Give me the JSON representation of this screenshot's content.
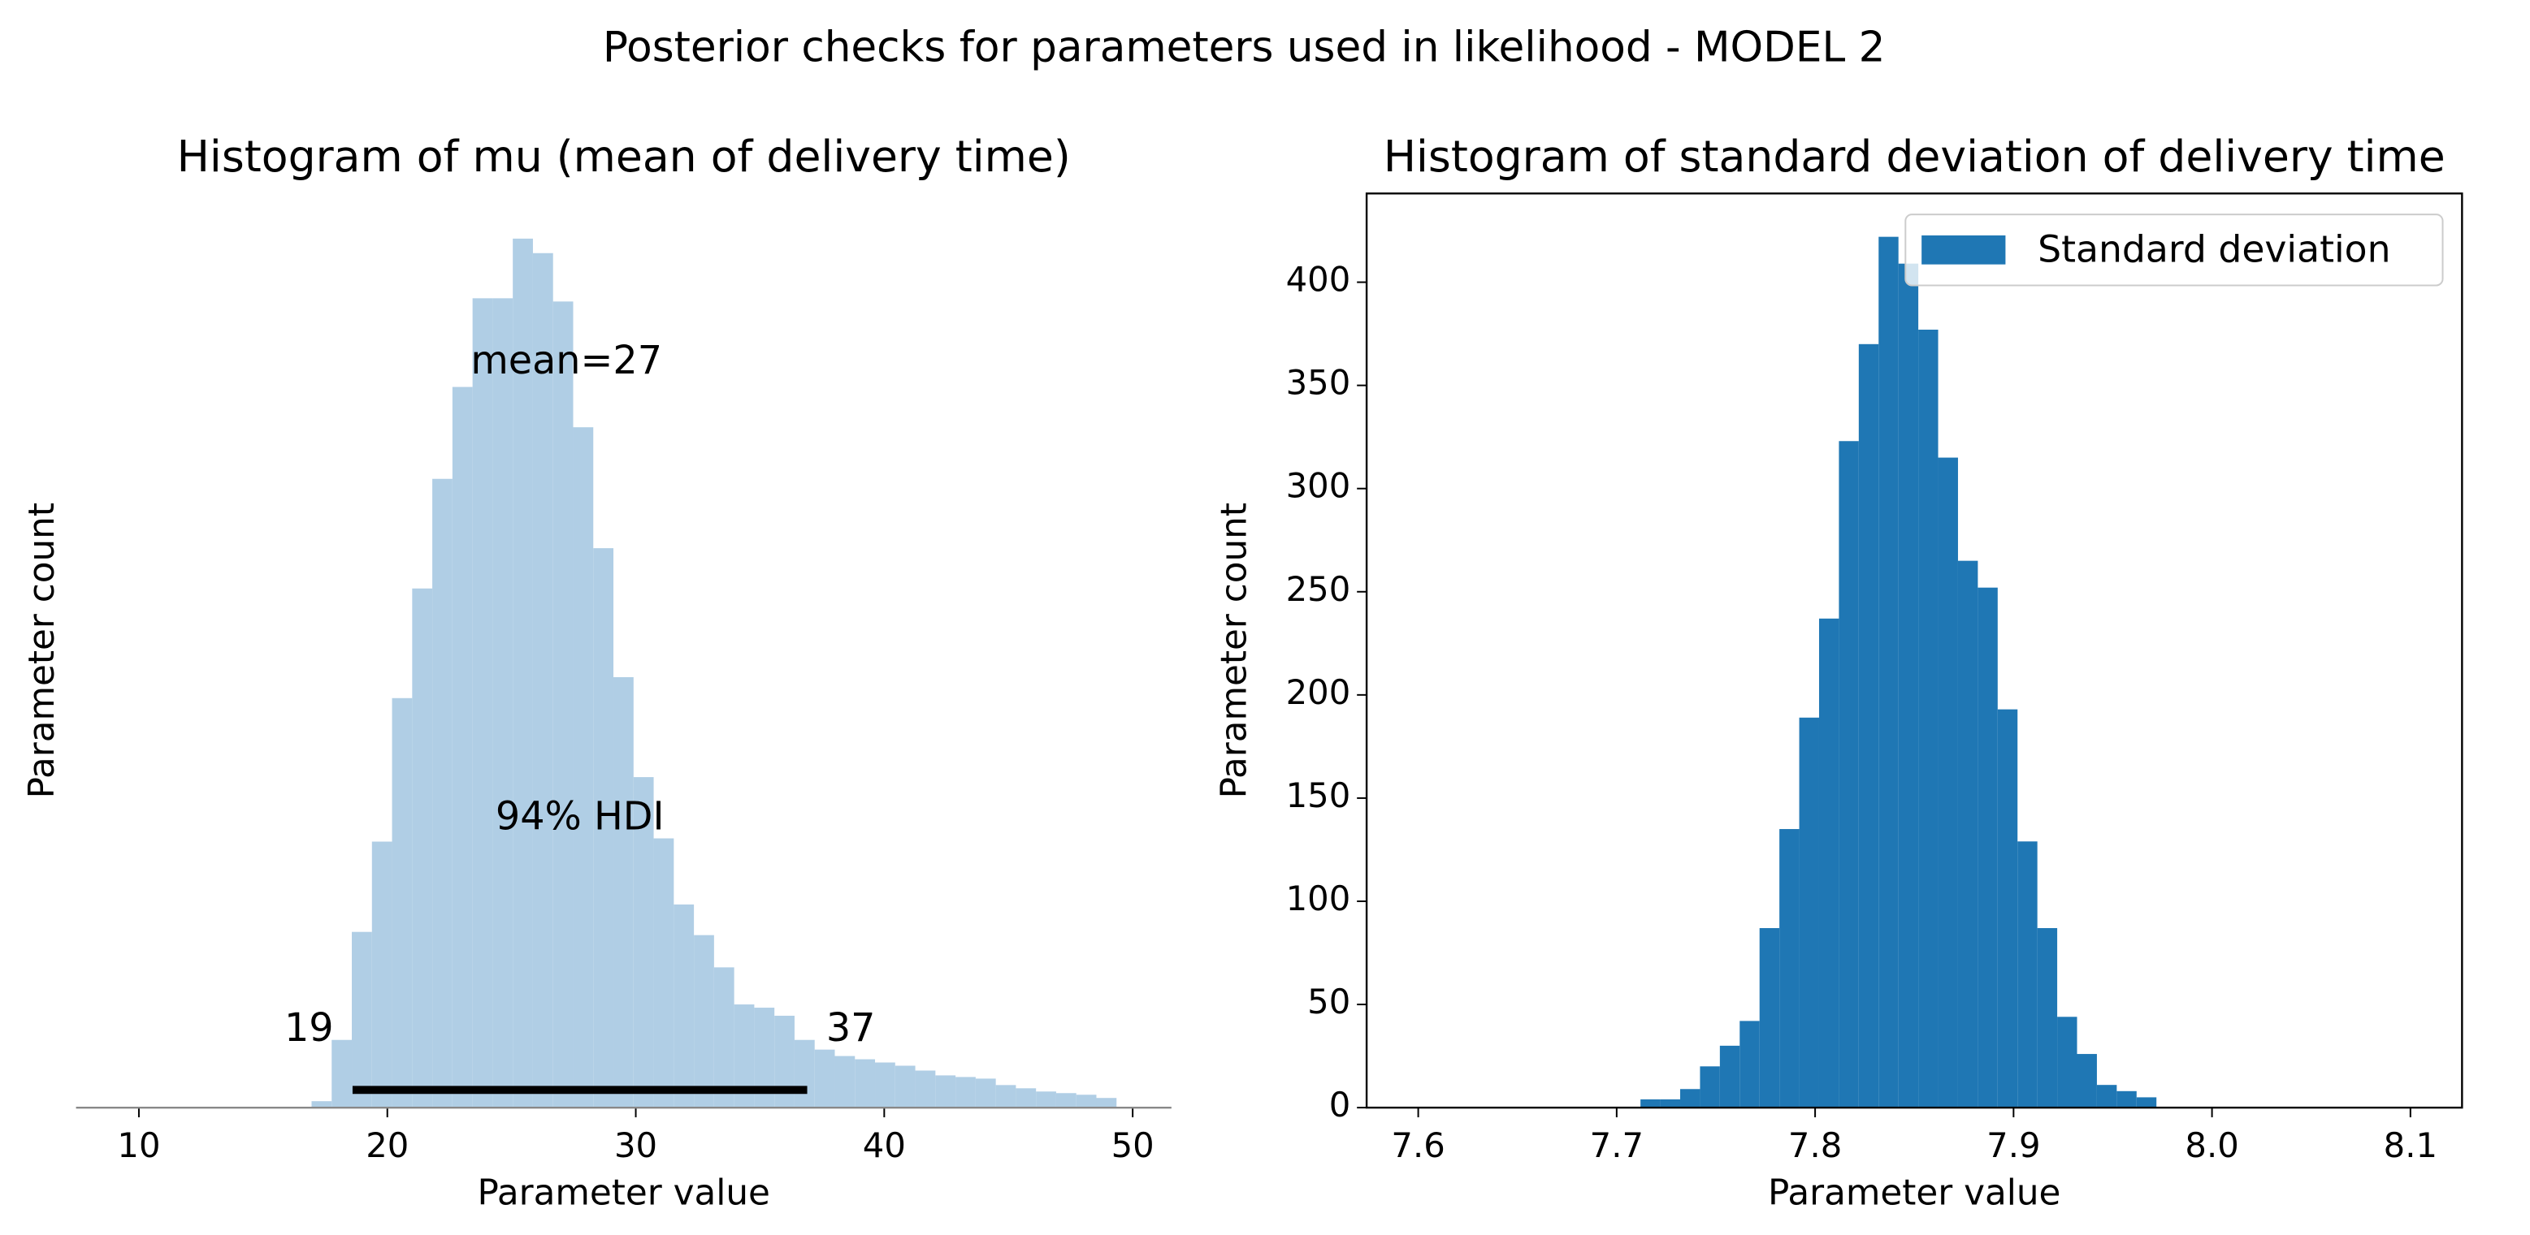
{
  "suptitle": "Posterior checks for parameters used in likelihood - MODEL 2",
  "chart_data": [
    {
      "type": "histogram",
      "title": "Histogram of mu (mean of delivery time)",
      "xlabel": "Parameter value",
      "ylabel": "Parameter count",
      "color": "#b0cee5",
      "bins": [
        16.95,
        17.76,
        18.57,
        19.38,
        20.19,
        21.0,
        21.81,
        22.62,
        23.43,
        24.24,
        25.05,
        25.86,
        26.67,
        27.48,
        28.29,
        29.1,
        29.91,
        30.72,
        31.53,
        32.34,
        33.15,
        33.96,
        34.77,
        35.58,
        36.39,
        37.2,
        38.01,
        38.82,
        39.63,
        40.44,
        41.25,
        42.06,
        42.87,
        43.68,
        44.49,
        45.3,
        46.11,
        46.92,
        47.73,
        48.54,
        49.35
      ],
      "values": [
        4,
        42,
        109,
        165,
        254,
        322,
        390,
        447,
        502,
        502,
        539,
        530,
        500,
        422,
        347,
        267,
        205,
        167,
        126,
        107,
        87,
        64,
        62,
        57,
        42,
        36,
        32,
        30,
        28,
        26,
        23,
        20,
        19,
        18,
        14,
        12,
        10,
        9,
        8,
        6
      ],
      "xlim": [
        7.47,
        51.56
      ],
      "xticks": [
        10,
        20,
        30,
        40,
        50
      ],
      "ylim": [
        0,
        567
      ],
      "mean_label": "mean=27",
      "hdi": {
        "label": "94% HDI",
        "values": [
          18.6,
          36.9
        ],
        "value_labels": [
          "19",
          "37"
        ]
      }
    },
    {
      "type": "histogram",
      "title": "Histogram of standard deviation of delivery time",
      "xlabel": "Parameter value",
      "ylabel": "Parameter count",
      "color": "#1f77b4",
      "legend": "upper right",
      "series_name": "Standard deviation",
      "bins": [
        7.712,
        7.722,
        7.732,
        7.742,
        7.752,
        7.762,
        7.772,
        7.782,
        7.792,
        7.802,
        7.812,
        7.822,
        7.832,
        7.842,
        7.852,
        7.862,
        7.872,
        7.882,
        7.892,
        7.902,
        7.912,
        7.922,
        7.932,
        7.942,
        7.952,
        7.962,
        7.972
      ],
      "values": [
        4,
        4,
        9,
        20,
        30,
        42,
        87,
        135,
        189,
        237,
        323,
        370,
        422,
        409,
        377,
        315,
        265,
        252,
        193,
        129,
        87,
        44,
        26,
        11,
        8,
        5
      ],
      "xlim": [
        7.574,
        8.126
      ],
      "xticks": [
        {
          "value": 7.6,
          "label": "7.6"
        },
        {
          "value": 7.7,
          "label": "7.7"
        },
        {
          "value": 7.8,
          "label": "7.8"
        },
        {
          "value": 7.9,
          "label": "7.9"
        },
        {
          "value": 8.0,
          "label": "8.0"
        },
        {
          "value": 8.1,
          "label": "8.1"
        }
      ],
      "ylim": [
        0,
        443
      ],
      "yticks": [
        0,
        50,
        100,
        150,
        200,
        250,
        300,
        350,
        400
      ]
    }
  ]
}
